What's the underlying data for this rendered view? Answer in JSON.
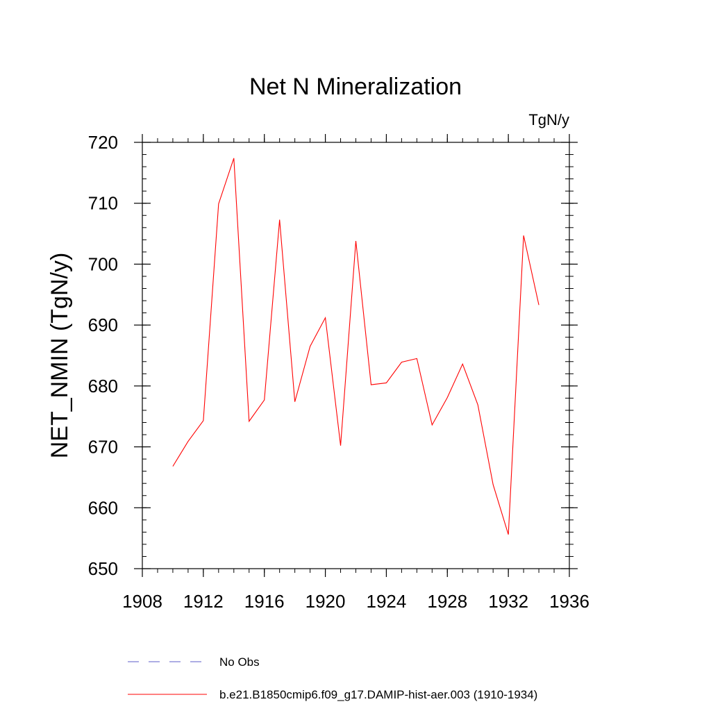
{
  "chart_data": {
    "type": "line",
    "title": "Net N Mineralization",
    "units": "TgN/y",
    "ylabel": "NET_NMIN  (TgN/y)",
    "xlabel": "",
    "xlim": [
      1908,
      1936
    ],
    "ylim": [
      650,
      720
    ],
    "xticks": [
      1908,
      1912,
      1916,
      1920,
      1924,
      1928,
      1932,
      1936
    ],
    "yticks": [
      650,
      660,
      670,
      680,
      690,
      700,
      710,
      720
    ],
    "x_minor_step": 1,
    "y_minor_step": 2,
    "grid": false,
    "legend_position": "bottom",
    "series": [
      {
        "name": "b.e21.B1850cmip6.f09_g17.DAMIP-hist-aer.003 (1910-1934)",
        "color": "#ff0000",
        "x": [
          1910,
          1911,
          1912,
          1913,
          1914,
          1915,
          1916,
          1917,
          1918,
          1919,
          1920,
          1921,
          1922,
          1923,
          1924,
          1925,
          1926,
          1927,
          1928,
          1929,
          1930,
          1931,
          1932,
          1933,
          1934
        ],
        "values": [
          666.8,
          670.9,
          674.3,
          709.9,
          717.4,
          674.2,
          677.7,
          707.3,
          677.4,
          686.5,
          691.2,
          670.2,
          703.8,
          680.2,
          680.5,
          683.9,
          684.5,
          673.6,
          678.1,
          683.6,
          676.9,
          663.8,
          655.6,
          704.7,
          693.3
        ]
      }
    ],
    "legend": [
      {
        "label": "No Obs",
        "color": "#5b5bc8",
        "style": "dashed"
      },
      {
        "label": "b.e21.B1850cmip6.f09_g17.DAMIP-hist-aer.003 (1910-1934)",
        "color": "#ff0000",
        "style": "solid"
      }
    ]
  }
}
